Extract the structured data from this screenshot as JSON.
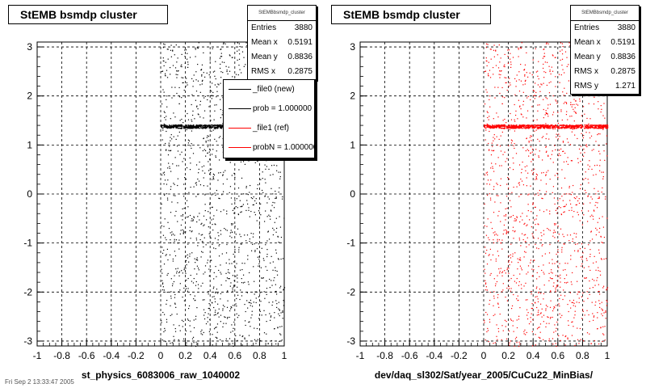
{
  "chart_data": [
    {
      "type": "scatter",
      "title": "StEMB bsmdp cluster",
      "xlabel": "st_physics_6083006_raw_1040002",
      "ylabel": "",
      "xlim": [
        -1,
        1
      ],
      "ylim": [
        -3.1,
        3.1
      ],
      "x_ticks": [
        "-1",
        "-0.8",
        "-0.6",
        "-0.4",
        "-0.2",
        "0",
        "0.2",
        "0.4",
        "0.6",
        "0.8",
        "1"
      ],
      "y_ticks": [
        "3",
        "2",
        "1",
        "0",
        "-1",
        "-2",
        "-3"
      ],
      "grid": true,
      "marker_color": "#000000",
      "scatter_region": {
        "x": [
          0,
          1
        ],
        "y": [
          -3.1,
          3.1
        ]
      },
      "dense_band": {
        "x": [
          0,
          1
        ],
        "y": [
          1.35,
          1.42
        ]
      },
      "stats": {
        "name": "StEMBbsmdp_cluster",
        "rows": [
          {
            "label": "Entries",
            "value": "3880"
          },
          {
            "label": "Mean x",
            "value": "0.5191"
          },
          {
            "label": "Mean y",
            "value": "0.8836"
          },
          {
            "label": "RMS x",
            "value": "0.2875"
          }
        ]
      },
      "legend": {
        "position": "top-right",
        "entries": [
          {
            "label": "_file0 (new)",
            "color": "#000000"
          },
          {
            "label": "prob = 1.000000",
            "color": "#000000"
          },
          {
            "label": "_file1 (ref)",
            "color": "#ff0000"
          },
          {
            "label": "probN = 1.000000",
            "color": "#ff0000"
          }
        ]
      }
    },
    {
      "type": "scatter",
      "title": "StEMB bsmdp cluster",
      "xlabel": "dev/daq_sl302/Sat/year_2005/CuCu22_MinBias/",
      "ylabel": "",
      "xlim": [
        -1,
        1
      ],
      "ylim": [
        -3.1,
        3.1
      ],
      "x_ticks": [
        "-1",
        "-0.8",
        "-0.6",
        "-0.4",
        "-0.2",
        "0",
        "0.2",
        "0.4",
        "0.6",
        "0.8",
        "1"
      ],
      "y_ticks": [
        "3",
        "2",
        "1",
        "0",
        "-1",
        "-2",
        "-3"
      ],
      "grid": true,
      "marker_color": "#ff0000",
      "scatter_region": {
        "x": [
          0,
          1
        ],
        "y": [
          -3.1,
          3.1
        ]
      },
      "dense_band": {
        "x": [
          0,
          1
        ],
        "y": [
          1.35,
          1.42
        ]
      },
      "stats": {
        "name": "StEMBbsmdp_cluster",
        "rows": [
          {
            "label": "Entries",
            "value": "3880"
          },
          {
            "label": "Mean x",
            "value": "0.5191"
          },
          {
            "label": "Mean y",
            "value": "0.8836"
          },
          {
            "label": "RMS x",
            "value": "0.2875"
          },
          {
            "label": "RMS y",
            "value": "1.271"
          }
        ]
      }
    }
  ],
  "footer": "Fri Sep  2 13:33:47 2005"
}
